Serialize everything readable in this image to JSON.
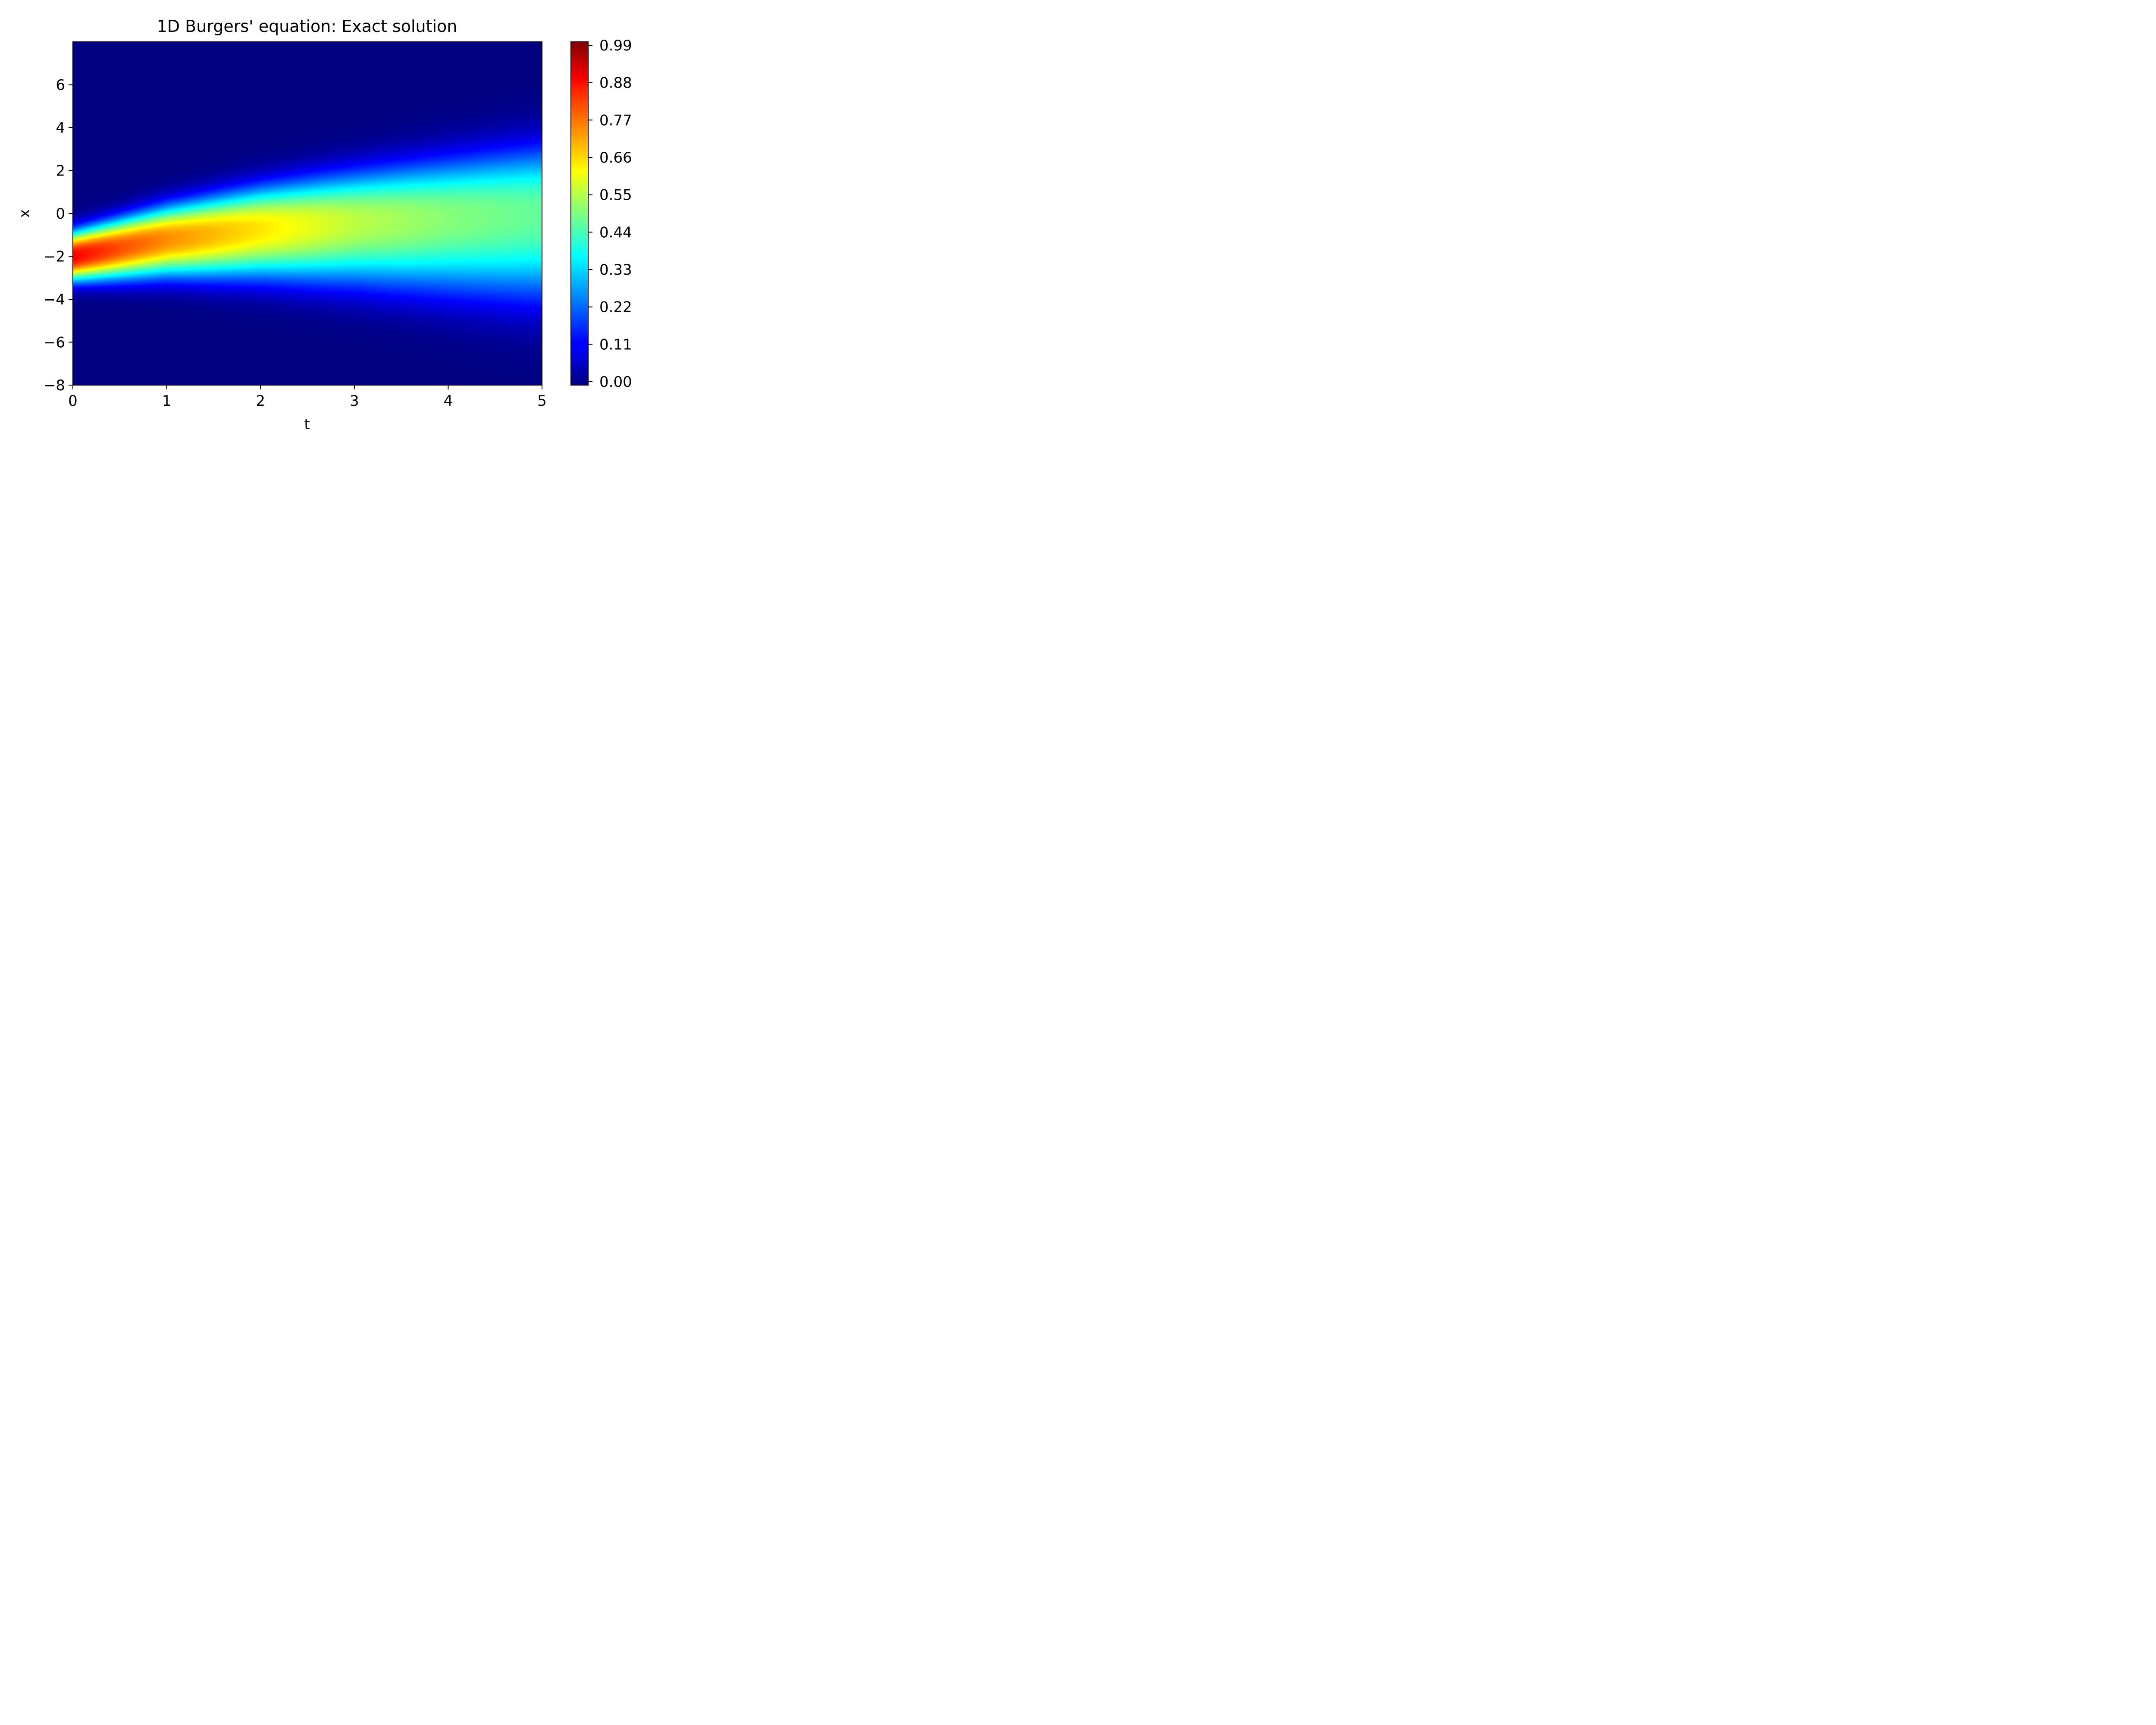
{
  "chart_data": {
    "type": "heatmap",
    "title": "1D Burgers' equation: Exact solution",
    "xlabel": "t",
    "ylabel": "x",
    "xlim": [
      0,
      5
    ],
    "ylim": [
      -8,
      8
    ],
    "x_ticks": [
      0,
      1,
      2,
      3,
      4,
      5
    ],
    "x_tick_labels": [
      "0",
      "1",
      "2",
      "3",
      "4",
      "5"
    ],
    "y_ticks": [
      -8,
      -6,
      -4,
      -2,
      0,
      2,
      4,
      6
    ],
    "y_tick_labels": [
      "−8",
      "−6",
      "−4",
      "−2",
      "0",
      "2",
      "4",
      "6"
    ],
    "colormap": "jet",
    "colorbar": {
      "range": [
        0.0,
        0.99
      ],
      "ticks": [
        0.0,
        0.11,
        0.22,
        0.33,
        0.44,
        0.55,
        0.66,
        0.77,
        0.88,
        0.99
      ],
      "tick_labels": [
        "0.00",
        "0.11",
        "0.22",
        "0.33",
        "0.44",
        "0.55",
        "0.66",
        "0.77",
        "0.88",
        "0.99"
      ]
    },
    "field_profile": [
      {
        "t": 0.0,
        "peak_x": -2.0,
        "peak_value": 0.99
      },
      {
        "t": 0.5,
        "peak_x": -1.6,
        "peak_value": 0.9
      },
      {
        "t": 1.0,
        "peak_x": -1.2,
        "peak_value": 0.83
      },
      {
        "t": 2.0,
        "peak_x": -0.7,
        "peak_value": 0.73
      },
      {
        "t": 3.0,
        "peak_x": -0.4,
        "peak_value": 0.63
      },
      {
        "t": 4.0,
        "peak_x": -0.2,
        "peak_value": 0.57
      },
      {
        "t": 5.0,
        "peak_x": 0.0,
        "peak_value": 0.53
      }
    ]
  }
}
